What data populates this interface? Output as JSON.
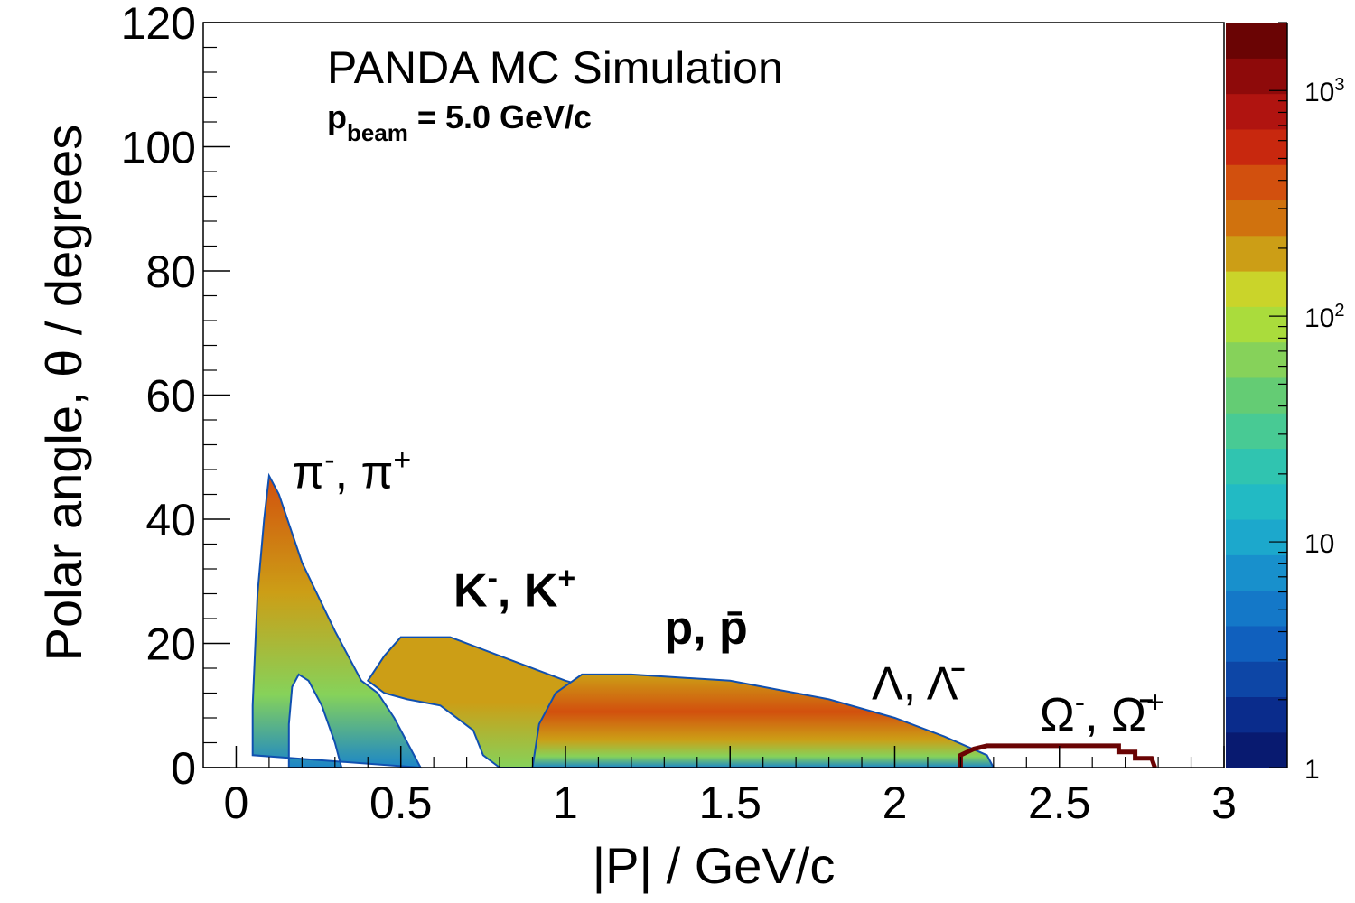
{
  "chart_data": {
    "type": "heatmap",
    "title": "PANDA MC Simulation",
    "subtitle": {
      "p": "p",
      "sub": "beam",
      "rest": " = 5.0 GeV/c"
    },
    "xlabel": "|P| / GeV/c",
    "ylabel": "Polar angle, θ / degrees",
    "xlim": [
      -0.1,
      3
    ],
    "ylim": [
      0,
      120
    ],
    "x_ticks": [
      {
        "value": 0,
        "label": "0"
      },
      {
        "value": 0.5,
        "label": "0.5"
      },
      {
        "value": 1,
        "label": "1"
      },
      {
        "value": 1.5,
        "label": "1.5"
      },
      {
        "value": 2,
        "label": "2"
      },
      {
        "value": 2.5,
        "label": "2.5"
      },
      {
        "value": 3,
        "label": "3"
      }
    ],
    "y_ticks": [
      {
        "value": 0,
        "label": "0"
      },
      {
        "value": 20,
        "label": "20"
      },
      {
        "value": 40,
        "label": "40"
      },
      {
        "value": 60,
        "label": "60"
      },
      {
        "value": 80,
        "label": "80"
      },
      {
        "value": 100,
        "label": "100"
      },
      {
        "value": 120,
        "label": "120"
      }
    ],
    "colorbar": {
      "scale": "log",
      "range": [
        1,
        2000
      ],
      "ticks": [
        {
          "value": 1,
          "base": "1",
          "exp": ""
        },
        {
          "value": 10,
          "base": "10",
          "exp": ""
        },
        {
          "value": 100,
          "base": "10",
          "exp": "2"
        },
        {
          "value": 1000,
          "base": "10",
          "exp": "3"
        }
      ],
      "colors": [
        "#081a70",
        "#0a2c8c",
        "#0d46a6",
        "#1060be",
        "#1478c8",
        "#1890cc",
        "#1ca8cc",
        "#22bac4",
        "#30c4b0",
        "#48ca94",
        "#64cc74",
        "#86d25a",
        "#aadc3c",
        "#cad42a",
        "#cc9e16",
        "#d0720e",
        "#d2500e",
        "#c8280e",
        "#b01410",
        "#8e0a0a",
        "#6a0404"
      ]
    },
    "regions": [
      {
        "label": {
          "a": "π",
          "as": "-",
          "b": ", π",
          "bs": "+"
        },
        "label_pos": [
          0.17,
          45
        ],
        "bold": false,
        "outer": [
          [
            0.05,
            2
          ],
          [
            0.05,
            10
          ],
          [
            0.065,
            28
          ],
          [
            0.085,
            40
          ],
          [
            0.1,
            47
          ],
          [
            0.13,
            44
          ],
          [
            0.2,
            33
          ],
          [
            0.3,
            22
          ],
          [
            0.38,
            14
          ],
          [
            0.43,
            12
          ],
          [
            0.48,
            8
          ],
          [
            0.52,
            4
          ],
          [
            0.56,
            0
          ]
        ],
        "holes": [
          [
            [
              0.16,
              0
            ],
            [
              0.16,
              7
            ],
            [
              0.17,
              13
            ],
            [
              0.19,
              15
            ],
            [
              0.22,
              14
            ],
            [
              0.26,
              10
            ],
            [
              0.3,
              4
            ],
            [
              0.32,
              0
            ]
          ]
        ],
        "gradient": [
          [
            0.0,
            "#1c86c8"
          ],
          [
            0.25,
            "#86d25a"
          ],
          [
            0.6,
            "#cc9e16"
          ],
          [
            1.0,
            "#d2500e"
          ]
        ]
      },
      {
        "label": {
          "a": "K",
          "as": "-",
          "b": ", K",
          "bs": "+"
        },
        "label_pos": [
          0.66,
          26
        ],
        "bold": true,
        "outer": [
          [
            0.45,
            18
          ],
          [
            0.5,
            21
          ],
          [
            0.65,
            21
          ],
          [
            0.8,
            18
          ],
          [
            1.0,
            14
          ],
          [
            1.2,
            11
          ],
          [
            1.4,
            8
          ],
          [
            1.55,
            5
          ],
          [
            1.6,
            3
          ],
          [
            1.55,
            0
          ],
          [
            0.8,
            0
          ],
          [
            0.75,
            2
          ],
          [
            0.72,
            6
          ],
          [
            0.62,
            10
          ],
          [
            0.52,
            11
          ],
          [
            0.45,
            12
          ],
          [
            0.4,
            14
          ]
        ],
        "holes": [],
        "gradient": [
          [
            0.0,
            "#86d25a"
          ],
          [
            0.5,
            "#cc9e16"
          ],
          [
            1.0,
            "#cc9e16"
          ]
        ]
      },
      {
        "label": {
          "a": "p",
          "as": "",
          "b": ",  p̄",
          "bs": ""
        },
        "label_pos": [
          1.3,
          20
        ],
        "bold": true,
        "outer": [
          [
            0.9,
            0
          ],
          [
            0.92,
            7
          ],
          [
            0.97,
            12
          ],
          [
            1.05,
            15
          ],
          [
            1.2,
            15
          ],
          [
            1.5,
            14
          ],
          [
            1.8,
            11
          ],
          [
            2.0,
            8
          ],
          [
            2.15,
            5
          ],
          [
            2.28,
            2
          ],
          [
            2.3,
            0
          ]
        ],
        "holes": [],
        "gradient": [
          [
            0.0,
            "#1c86c8"
          ],
          [
            0.12,
            "#86d25a"
          ],
          [
            0.3,
            "#cc9e16"
          ],
          [
            0.6,
            "#d2500e"
          ],
          [
            1.0,
            "#cc9e16"
          ]
        ]
      },
      {
        "label": {
          "a": "Λ",
          "as": "",
          "b": ",  Λ̄",
          "bs": ""
        },
        "label_pos": [
          1.93,
          11
        ],
        "bold": false,
        "outer": [],
        "holes": [],
        "gradient": []
      },
      {
        "label": {
          "a": "Ω",
          "as": "-",
          "b": ",  Ω̄",
          "bs": "+"
        },
        "label_pos": [
          2.44,
          6
        ],
        "bold": false,
        "outer": [],
        "holes": [],
        "gradient": []
      }
    ],
    "omega_outline": {
      "color": "#6a0404",
      "points": [
        [
          2.2,
          0
        ],
        [
          2.2,
          2
        ],
        [
          2.24,
          3
        ],
        [
          2.28,
          3.5
        ],
        [
          2.68,
          3.5
        ],
        [
          2.68,
          2.5
        ],
        [
          2.73,
          2.5
        ],
        [
          2.73,
          1.5
        ],
        [
          2.78,
          1.5
        ],
        [
          2.79,
          0
        ]
      ]
    }
  }
}
